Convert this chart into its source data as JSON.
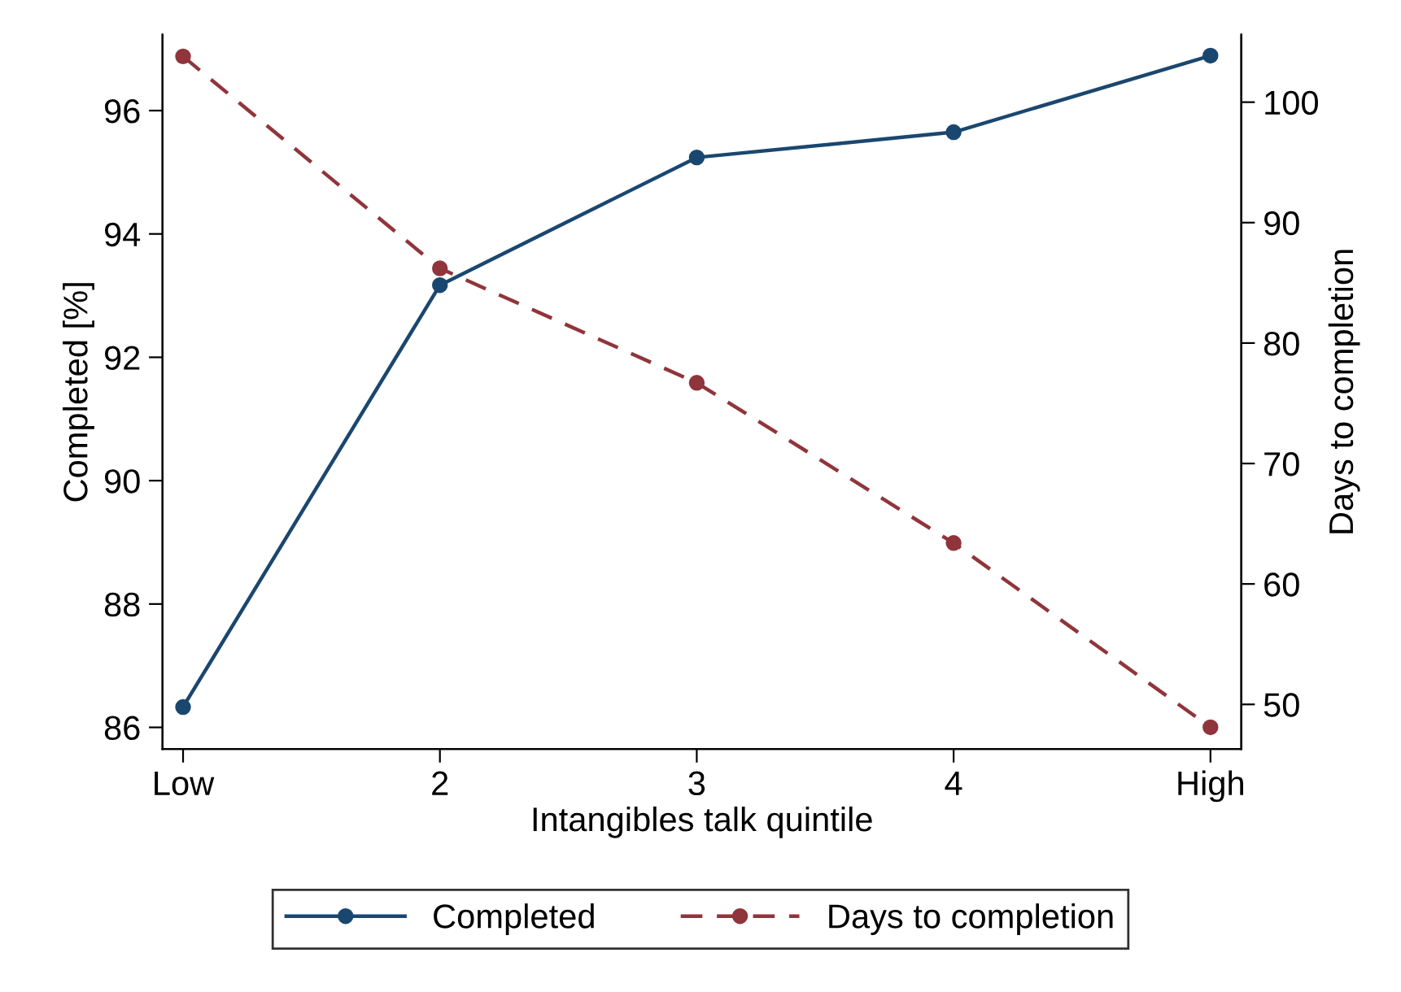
{
  "chart_data": {
    "type": "line",
    "xlabel": "Intangibles talk quintile",
    "ylabel": "Completed [%]",
    "y2label": "Days to completion",
    "categories": [
      "Low",
      "2",
      "3",
      "4",
      "High"
    ],
    "series": [
      {
        "name": "Completed",
        "color": "#1a476f",
        "values": [
          86.33,
          93.17,
          95.24,
          95.65,
          96.89
        ],
        "line_style": "solid"
      },
      {
        "name": "Days to completion",
        "color": "#90353b",
        "values": [
          103.8,
          86.2,
          76.7,
          63.4,
          48.1
        ],
        "axis": "y2",
        "line_style": "dashed"
      }
    ],
    "ylim": [
      85.65,
      97.23
    ],
    "yticks": [
      86,
      88,
      90,
      92,
      94,
      96
    ],
    "y2lim": [
      46.3,
      105.6
    ],
    "y2ticks": [
      50,
      60,
      70,
      80,
      90,
      100
    ],
    "marker": "circle",
    "grid": false,
    "legend": "bottom"
  }
}
